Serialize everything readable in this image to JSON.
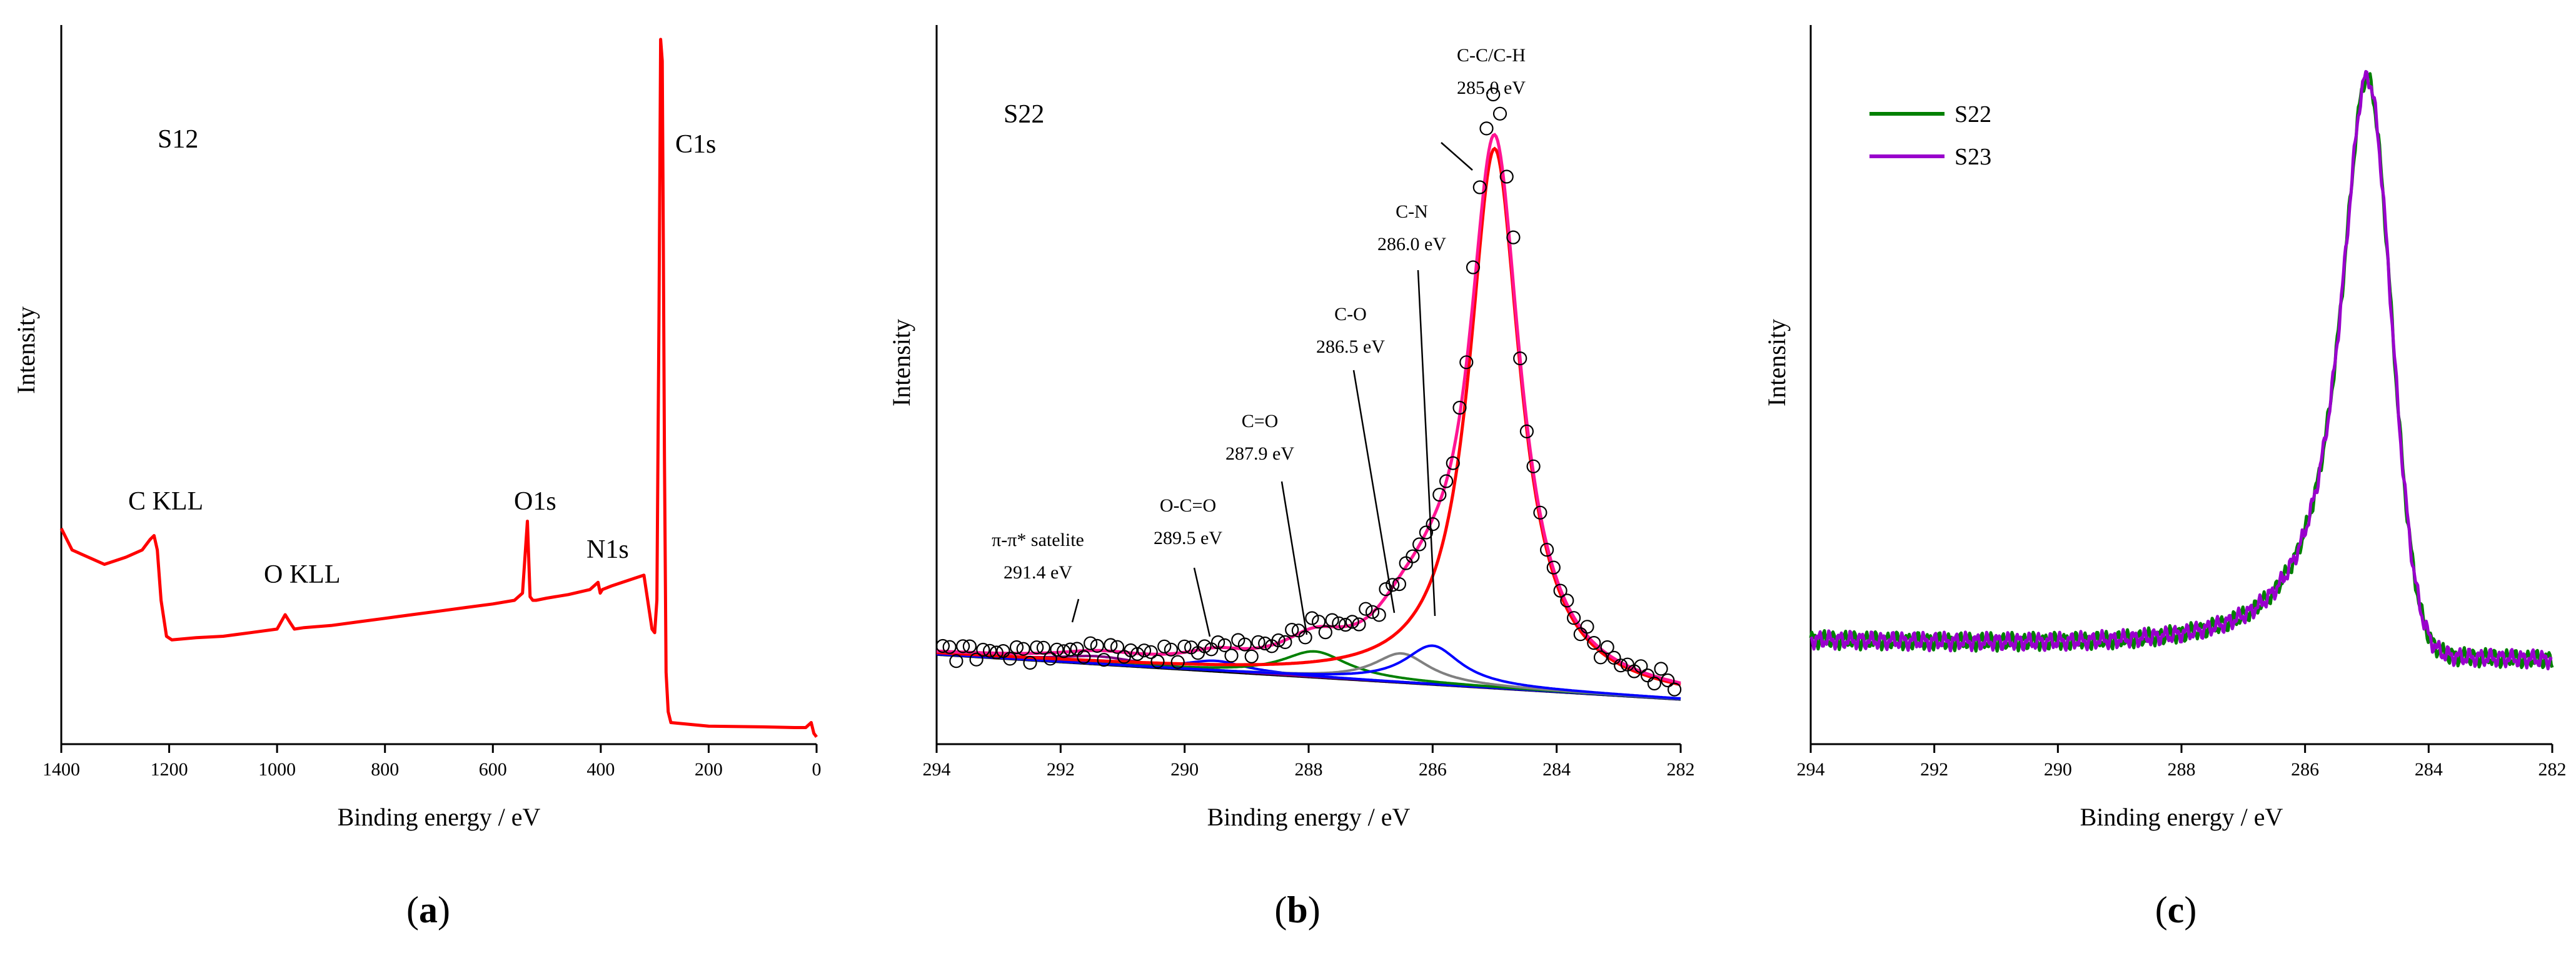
{
  "chart_data": [
    {
      "type": "line",
      "panel": "a",
      "panel_label": "a",
      "sample_label": "S12",
      "xlabel": "Binding energy / eV",
      "ylabel": "Intensity",
      "xlim": [
        1400,
        0
      ],
      "xticks": [
        1400,
        1200,
        1000,
        800,
        600,
        400,
        200,
        0
      ],
      "ylim": [
        0,
        100
      ],
      "series": [
        {
          "name": "S12",
          "color": "#ff0000",
          "x": [
            1400,
            1380,
            1350,
            1320,
            1300,
            1280,
            1250,
            1235,
            1228,
            1222,
            1215,
            1205,
            1195,
            1150,
            1100,
            1050,
            1000,
            985,
            975,
            968,
            950,
            900,
            850,
            800,
            750,
            700,
            650,
            600,
            560,
            545,
            536,
            531,
            526,
            520,
            500,
            460,
            420,
            405,
            401,
            397,
            380,
            340,
            320,
            310,
            305,
            300,
            296,
            292,
            289,
            286,
            284,
            282,
            279,
            275,
            270,
            200,
            100,
            40,
            20,
            10,
            5,
            0
          ],
          "values": [
            30.0,
            27.0,
            26.0,
            25.0,
            25.5,
            26.0,
            27.0,
            28.5,
            29.0,
            27.0,
            20.0,
            15.0,
            14.5,
            14.8,
            15.0,
            15.5,
            16.0,
            18.0,
            16.8,
            16.0,
            16.2,
            16.5,
            17.0,
            17.5,
            18.0,
            18.5,
            19.0,
            19.5,
            20.0,
            21.0,
            31.0,
            20.5,
            20.0,
            20.0,
            20.3,
            20.8,
            21.5,
            22.5,
            21.0,
            21.5,
            22.0,
            23.0,
            23.5,
            18.5,
            16.0,
            15.5,
            20.0,
            60.0,
            98.0,
            95.0,
            70.0,
            40.0,
            10.0,
            4.5,
            3.0,
            2.5,
            2.4,
            2.3,
            2.3,
            3.0,
            1.5,
            1.0
          ]
        }
      ],
      "annotations": [
        {
          "text": "C1s"
        },
        {
          "text": "C KLL"
        },
        {
          "text": "O KLL"
        },
        {
          "text": "O1s"
        },
        {
          "text": "N1s"
        }
      ]
    },
    {
      "type": "line",
      "panel": "b",
      "panel_label": "b",
      "sample_label": "S22",
      "xlabel": "Binding energy / eV",
      "ylabel": "Intensity",
      "xlim": [
        294,
        282
      ],
      "xticks": [
        294,
        292,
        290,
        288,
        286,
        284,
        282
      ],
      "ylim": [
        -12,
        100
      ],
      "experimental": {
        "name": "experimental",
        "marker": "circle",
        "n_points": 110
      },
      "components": [
        {
          "name": "C-C/C-H",
          "label": "C-C/C-H",
          "energy_label": "285.0 eV",
          "center": 285.0,
          "height": 84,
          "width": 0.5,
          "color": "#ff0000"
        },
        {
          "name": "C-N",
          "label": "C-N",
          "energy_label": "286.0 eV",
          "center": 286.0,
          "height": 6,
          "width": 0.55,
          "color": "#0000ff"
        },
        {
          "name": "C-O",
          "label": "C-O",
          "energy_label": "286.5 eV",
          "center": 286.5,
          "height": 4.5,
          "width": 0.55,
          "color": "#808080"
        },
        {
          "name": "C=O",
          "label": "C=O",
          "energy_label": "287.9 eV",
          "center": 287.9,
          "height": 4,
          "width": 0.65,
          "color": "#008000"
        },
        {
          "name": "O-C=O",
          "label": "O-C=O",
          "energy_label": "289.5 eV",
          "center": 289.5,
          "height": 1.6,
          "width": 0.6,
          "color": "#0000ff"
        },
        {
          "name": "π-π* satelite",
          "label": "π-π* satelite",
          "energy_label": "291.4 eV",
          "center": 291.4,
          "height": 1.2,
          "width": 0.8,
          "color": "#800080"
        }
      ],
      "background": {
        "name": "background",
        "color": "#000000",
        "start": 2,
        "end": -5
      },
      "envelope": {
        "name": "envelope",
        "color": "#ff1493"
      }
    },
    {
      "type": "line",
      "panel": "c",
      "panel_label": "c",
      "xlabel": "Binding energy / eV",
      "ylabel": "Intensity",
      "xlim": [
        294,
        282
      ],
      "xticks": [
        294,
        292,
        290,
        288,
        286,
        284,
        282
      ],
      "ylim": [
        -12,
        100
      ],
      "legend_position": "top-left",
      "series": [
        {
          "name": "S22",
          "color": "#008000"
        },
        {
          "name": "S23",
          "color": "#9900cc"
        }
      ]
    }
  ]
}
